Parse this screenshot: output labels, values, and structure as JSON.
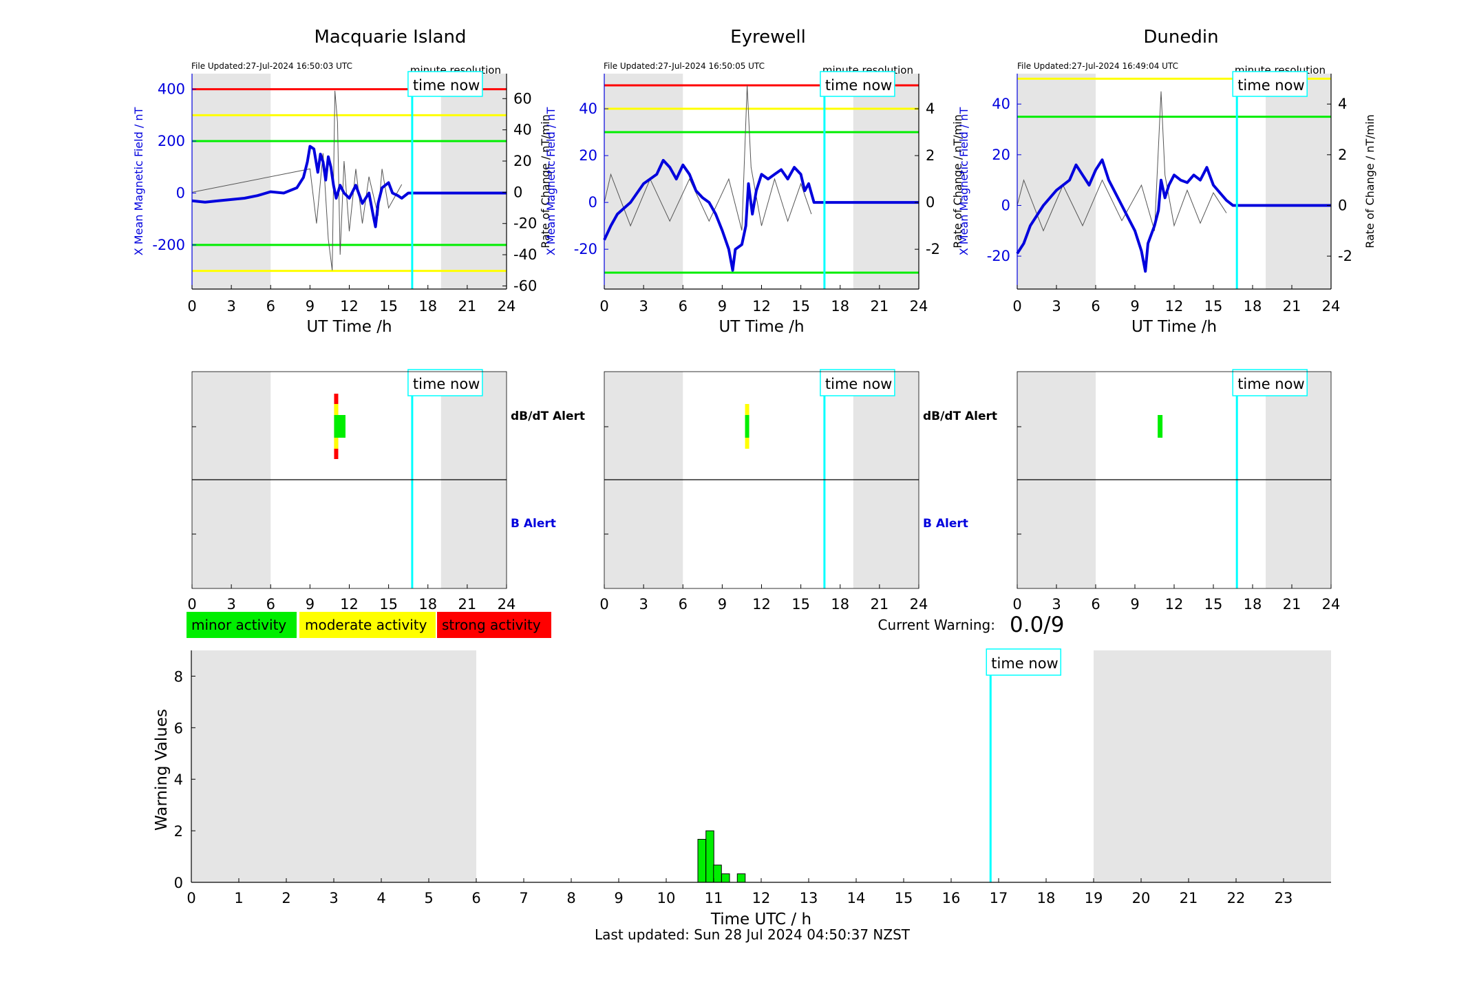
{
  "axis_common": {
    "ut_ticks": [
      "0",
      "3",
      "6",
      "9",
      "12",
      "15",
      "18",
      "21",
      "24"
    ],
    "ut_xlabel": "UT Time /h",
    "time_now_label": "time now",
    "minute_resolution_label": "minute resolution",
    "dbdt_alert_label": "dB/dT Alert",
    "b_alert_label": "B Alert"
  },
  "colors": {
    "field": "#0000dd",
    "rate": "#555555",
    "red": "#ff0000",
    "yellow": "#ffff00",
    "green": "#00ee00",
    "now": "#00ffff",
    "shade": "#e5e5e5"
  },
  "legend": {
    "minor": "minor activity",
    "moderate": "moderate activity",
    "strong": "strong activity"
  },
  "current_warning": {
    "label": "Current Warning:",
    "value": "0.0/9"
  },
  "footer": {
    "last_updated": "Last updated: Sun 28 Jul 2024 04:50:37 NZST"
  },
  "chart_data": [
    {
      "type": "line",
      "station": "Macquarie Island",
      "file_updated": "File Updated:27-Jul-2024 16:50:03 UTC",
      "ylabel": "X Mean Magnetic Field / nT",
      "ylabel2": "Rate of Change / nT/min",
      "xlim": [
        0,
        24
      ],
      "ylim": [
        -370,
        460
      ],
      "y2lim": [
        -62,
        76
      ],
      "yticks": [
        -200,
        0,
        200,
        400
      ],
      "y2ticks": [
        -60,
        -40,
        -20,
        0,
        20,
        40,
        60
      ],
      "shade_ranges": [
        [
          0,
          6
        ],
        [
          19,
          24
        ]
      ],
      "now_hour": 16.8,
      "thresholds": [
        {
          "y": 400,
          "color": "red"
        },
        {
          "y": 300,
          "color": "yellow"
        },
        {
          "y": 200,
          "color": "green"
        },
        {
          "y": -200,
          "color": "green"
        },
        {
          "y": -300,
          "color": "yellow"
        }
      ],
      "field_series": [
        [
          0,
          -30
        ],
        [
          1,
          -35
        ],
        [
          2,
          -30
        ],
        [
          3,
          -25
        ],
        [
          4,
          -20
        ],
        [
          5,
          -10
        ],
        [
          6,
          5
        ],
        [
          7,
          0
        ],
        [
          8,
          20
        ],
        [
          8.5,
          60
        ],
        [
          8.8,
          120
        ],
        [
          9,
          180
        ],
        [
          9.3,
          170
        ],
        [
          9.6,
          80
        ],
        [
          9.8,
          150
        ],
        [
          10,
          120
        ],
        [
          10.2,
          50
        ],
        [
          10.4,
          140
        ],
        [
          10.6,
          100
        ],
        [
          10.8,
          30
        ],
        [
          11,
          -20
        ],
        [
          11.3,
          30
        ],
        [
          11.6,
          0
        ],
        [
          12,
          -20
        ],
        [
          12.5,
          30
        ],
        [
          13,
          -40
        ],
        [
          13.5,
          0
        ],
        [
          13.8,
          -80
        ],
        [
          14,
          -130
        ],
        [
          14.2,
          -40
        ],
        [
          14.5,
          20
        ],
        [
          15,
          40
        ],
        [
          15.3,
          0
        ],
        [
          15.7,
          -10
        ],
        [
          16,
          -20
        ],
        [
          16.5,
          0
        ],
        [
          24,
          0
        ]
      ],
      "rate_spikes": [
        [
          9,
          15
        ],
        [
          9.5,
          -20
        ],
        [
          10,
          25
        ],
        [
          10.4,
          -30
        ],
        [
          10.7,
          -50
        ],
        [
          10.9,
          65
        ],
        [
          11.1,
          45
        ],
        [
          11.3,
          -40
        ],
        [
          11.6,
          20
        ],
        [
          12,
          -25
        ],
        [
          12.5,
          15
        ],
        [
          13,
          -20
        ],
        [
          13.5,
          10
        ],
        [
          14.2,
          -15
        ],
        [
          14.5,
          15
        ],
        [
          15,
          -10
        ],
        [
          16,
          5
        ]
      ],
      "dbdt_alert": [
        {
          "hour": 11.0,
          "level": "strong"
        },
        {
          "hour": 11.2,
          "level": "minor"
        },
        {
          "hour": 11.5,
          "level": "minor"
        }
      ],
      "b_alert": []
    },
    {
      "type": "line",
      "station": "Eyrewell",
      "file_updated": "File Updated:27-Jul-2024 16:50:05 UTC",
      "ylabel": "X Mean Magnetic Field / nT",
      "ylabel2": "Rate of Change / nT/min",
      "xlim": [
        0,
        24
      ],
      "ylim": [
        -37,
        55
      ],
      "y2lim": [
        -3.7,
        5.5
      ],
      "yticks": [
        -20,
        0,
        20,
        40
      ],
      "y2ticks": [
        -2,
        0,
        2,
        4
      ],
      "shade_ranges": [
        [
          0,
          6
        ],
        [
          19,
          24
        ]
      ],
      "now_hour": 16.8,
      "thresholds": [
        {
          "y": 50,
          "color": "red"
        },
        {
          "y": 40,
          "color": "yellow"
        },
        {
          "y": 30,
          "color": "green"
        },
        {
          "y": -30,
          "color": "green"
        }
      ],
      "field_series": [
        [
          0,
          -16
        ],
        [
          0.5,
          -10
        ],
        [
          1,
          -5
        ],
        [
          2,
          0
        ],
        [
          3,
          8
        ],
        [
          4,
          12
        ],
        [
          4.5,
          18
        ],
        [
          5,
          15
        ],
        [
          5.5,
          10
        ],
        [
          6,
          16
        ],
        [
          6.5,
          12
        ],
        [
          7,
          5
        ],
        [
          7.5,
          2
        ],
        [
          8,
          0
        ],
        [
          8.5,
          -5
        ],
        [
          9,
          -12
        ],
        [
          9.5,
          -20
        ],
        [
          9.8,
          -29
        ],
        [
          10,
          -20
        ],
        [
          10.5,
          -18
        ],
        [
          10.8,
          -10
        ],
        [
          11,
          8
        ],
        [
          11.3,
          -5
        ],
        [
          11.6,
          5
        ],
        [
          12,
          12
        ],
        [
          12.5,
          10
        ],
        [
          13,
          12
        ],
        [
          13.5,
          14
        ],
        [
          14,
          10
        ],
        [
          14.5,
          15
        ],
        [
          15,
          12
        ],
        [
          15.3,
          5
        ],
        [
          15.6,
          8
        ],
        [
          16,
          0
        ],
        [
          24,
          0
        ]
      ],
      "rate_spikes": [
        [
          0.5,
          1.2
        ],
        [
          2,
          -1
        ],
        [
          3.5,
          1
        ],
        [
          5,
          -0.8
        ],
        [
          6.5,
          1
        ],
        [
          8,
          -0.8
        ],
        [
          9.5,
          1
        ],
        [
          10.5,
          -1.2
        ],
        [
          10.9,
          5
        ],
        [
          11.2,
          1.5
        ],
        [
          12,
          -1
        ],
        [
          13,
          1
        ],
        [
          14,
          -0.8
        ],
        [
          15,
          0.8
        ],
        [
          15.8,
          -0.5
        ]
      ],
      "dbdt_alert": [
        {
          "hour": 10.9,
          "level": "moderate"
        }
      ],
      "b_alert": []
    },
    {
      "type": "line",
      "station": "Dunedin",
      "file_updated": "File Updated:27-Jul-2024 16:49:04 UTC",
      "ylabel": "X Mean Magnetic Field / nT",
      "ylabel2": "Rate of Change / nT/min",
      "xlim": [
        0,
        24
      ],
      "ylim": [
        -33,
        52
      ],
      "y2lim": [
        -3.3,
        5.2
      ],
      "yticks": [
        -20,
        0,
        20,
        40
      ],
      "y2ticks": [
        -2,
        0,
        2,
        4
      ],
      "shade_ranges": [
        [
          0,
          6
        ],
        [
          19,
          24
        ]
      ],
      "now_hour": 16.8,
      "thresholds": [
        {
          "y": 50,
          "color": "yellow"
        },
        {
          "y": 35,
          "color": "green"
        }
      ],
      "field_series": [
        [
          0,
          -19
        ],
        [
          0.5,
          -15
        ],
        [
          1,
          -8
        ],
        [
          2,
          0
        ],
        [
          3,
          6
        ],
        [
          4,
          10
        ],
        [
          4.5,
          16
        ],
        [
          5,
          12
        ],
        [
          5.5,
          8
        ],
        [
          6,
          14
        ],
        [
          6.5,
          18
        ],
        [
          7,
          10
        ],
        [
          7.5,
          5
        ],
        [
          8,
          0
        ],
        [
          8.5,
          -5
        ],
        [
          9,
          -10
        ],
        [
          9.5,
          -18
        ],
        [
          9.8,
          -26
        ],
        [
          10,
          -15
        ],
        [
          10.5,
          -8
        ],
        [
          10.8,
          -2
        ],
        [
          11,
          10
        ],
        [
          11.3,
          3
        ],
        [
          11.6,
          8
        ],
        [
          12,
          12
        ],
        [
          12.5,
          10
        ],
        [
          13,
          9
        ],
        [
          13.5,
          12
        ],
        [
          14,
          10
        ],
        [
          14.5,
          15
        ],
        [
          15,
          8
        ],
        [
          15.5,
          5
        ],
        [
          16,
          2
        ],
        [
          16.5,
          0
        ],
        [
          24,
          0
        ]
      ],
      "rate_spikes": [
        [
          0.5,
          1
        ],
        [
          2,
          -1
        ],
        [
          3.5,
          0.8
        ],
        [
          5,
          -0.8
        ],
        [
          6.5,
          1
        ],
        [
          8,
          -0.6
        ],
        [
          9.5,
          0.8
        ],
        [
          10.5,
          -1
        ],
        [
          11,
          4.5
        ],
        [
          11.3,
          1.2
        ],
        [
          12,
          -0.8
        ],
        [
          13,
          0.6
        ],
        [
          14,
          -0.7
        ],
        [
          15,
          0.5
        ],
        [
          16,
          -0.3
        ]
      ],
      "dbdt_alert": [
        {
          "hour": 10.9,
          "level": "minor"
        }
      ],
      "b_alert": []
    },
    {
      "type": "bar",
      "title": "",
      "xlabel": "Time UTC / h",
      "ylabel": "Warning Values",
      "xlim": [
        0,
        24
      ],
      "ylim": [
        0,
        9
      ],
      "xticks": [
        "0",
        "1",
        "2",
        "3",
        "4",
        "5",
        "6",
        "7",
        "8",
        "9",
        "10",
        "11",
        "12",
        "13",
        "14",
        "15",
        "16",
        "17",
        "18",
        "19",
        "20",
        "21",
        "22",
        "23"
      ],
      "yticks": [
        "0",
        "2",
        "4",
        "6",
        "8"
      ],
      "shade_ranges": [
        [
          0,
          6
        ],
        [
          19,
          24
        ]
      ],
      "now_hour": 16.83,
      "bars": [
        {
          "hour": 10.75,
          "value": 1.67
        },
        {
          "hour": 10.92,
          "value": 2.0
        },
        {
          "hour": 11.08,
          "value": 0.67
        },
        {
          "hour": 11.25,
          "value": 0.33
        },
        {
          "hour": 11.58,
          "value": 0.33
        }
      ]
    }
  ]
}
